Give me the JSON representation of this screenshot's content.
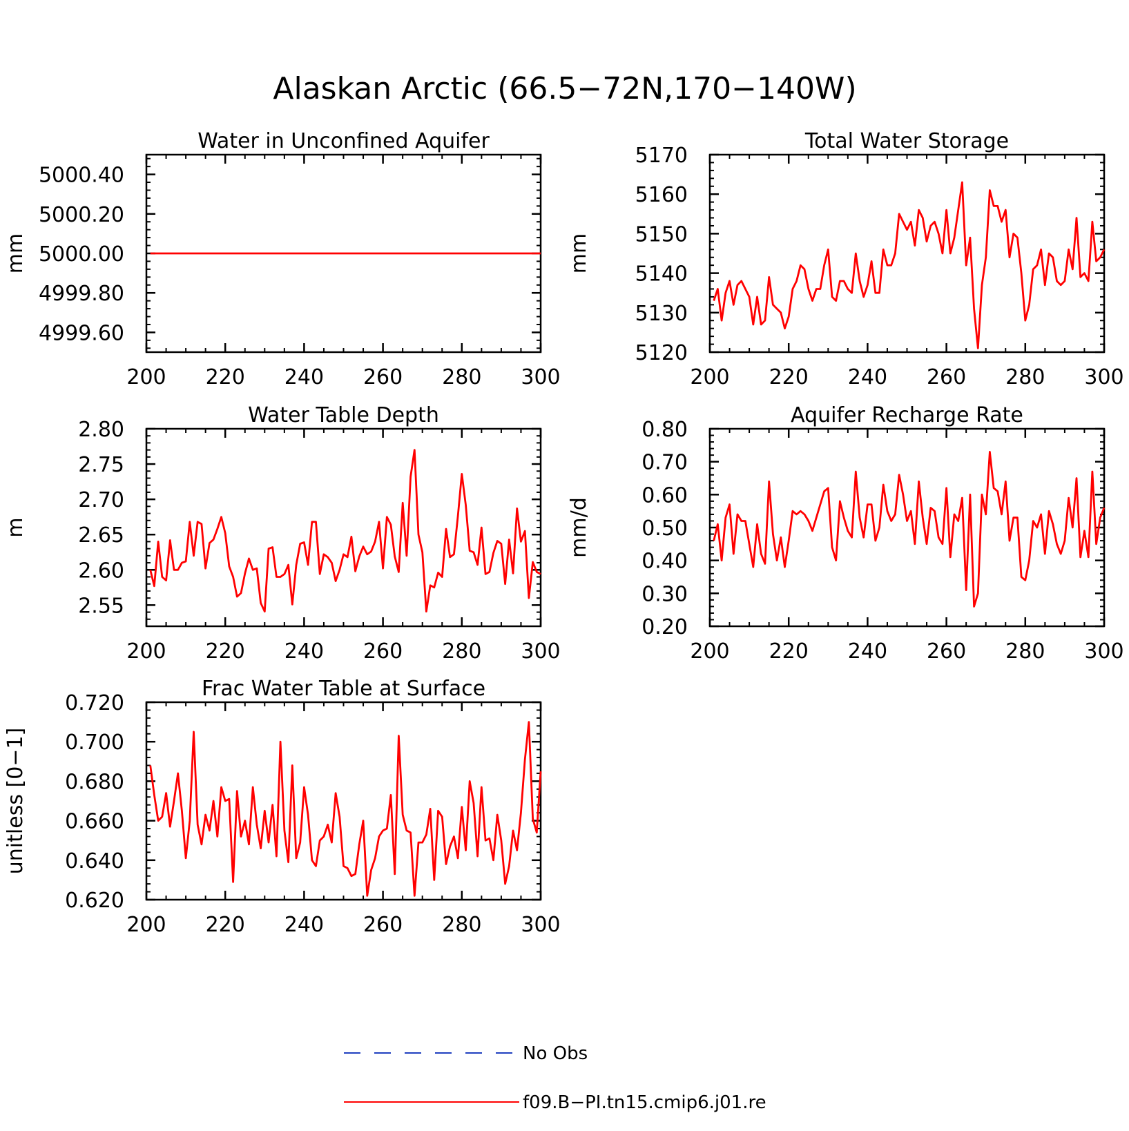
{
  "title": "Alaskan Arctic (66.5−72N,170−140W)",
  "legend": {
    "placement": "bottom-center",
    "entries": [
      {
        "label": "No Obs",
        "color": "#1f3fbf",
        "style": "dashed"
      },
      {
        "label": "f09.B−PI.tn15.cmip6.j01.re",
        "color": "#ff0000",
        "style": "solid"
      }
    ]
  },
  "chart_data": [
    {
      "type": "line",
      "title": "Water in Unconfined Aquifer",
      "xlabel": "",
      "ylabel": "mm",
      "xlim": [
        200,
        300
      ],
      "ylim": [
        4999.5,
        5000.5
      ],
      "xticks": [
        "200",
        "220",
        "240",
        "260",
        "280",
        "300"
      ],
      "yticks": [
        "4999.60",
        "4999.80",
        "5000.00",
        "5000.20",
        "5000.40"
      ],
      "color": "#ff0000",
      "x_start": 201,
      "values": [
        5000,
        5000,
        5000,
        5000,
        5000,
        5000,
        5000,
        5000,
        5000,
        5000,
        5000,
        5000,
        5000,
        5000,
        5000,
        5000,
        5000,
        5000,
        5000,
        5000,
        5000,
        5000,
        5000,
        5000,
        5000,
        5000,
        5000,
        5000,
        5000,
        5000,
        5000,
        5000,
        5000,
        5000,
        5000,
        5000,
        5000,
        5000,
        5000,
        5000,
        5000,
        5000,
        5000,
        5000,
        5000,
        5000,
        5000,
        5000,
        5000,
        5000,
        5000,
        5000,
        5000,
        5000,
        5000,
        5000,
        5000,
        5000,
        5000,
        5000,
        5000,
        5000,
        5000,
        5000,
        5000,
        5000,
        5000,
        5000,
        5000,
        5000,
        5000,
        5000,
        5000,
        5000,
        5000,
        5000,
        5000,
        5000,
        5000,
        5000,
        5000,
        5000,
        5000,
        5000,
        5000,
        5000,
        5000,
        5000,
        5000,
        5000,
        5000,
        5000,
        5000,
        5000,
        5000,
        5000,
        5000,
        5000,
        5000,
        5000
      ]
    },
    {
      "type": "line",
      "title": "Total Water Storage",
      "xlabel": "",
      "ylabel": "mm",
      "xlim": [
        200,
        300
      ],
      "ylim": [
        5120,
        5170
      ],
      "xticks": [
        "200",
        "220",
        "240",
        "260",
        "280",
        "300"
      ],
      "yticks": [
        "5120",
        "5130",
        "5140",
        "5150",
        "5160",
        "5170"
      ],
      "color": "#ff0000",
      "x_start": 201,
      "values": [
        5133,
        5136,
        5128,
        5135,
        5138,
        5132,
        5137,
        5138,
        5136,
        5134,
        5127,
        5134,
        5127,
        5128,
        5139,
        5132,
        5131,
        5130,
        5126,
        5129,
        5136,
        5138,
        5142,
        5141,
        5136,
        5133,
        5136,
        5136,
        5142,
        5146,
        5134,
        5133,
        5138,
        5138,
        5136,
        5135,
        5145,
        5138,
        5134,
        5137,
        5143,
        5135,
        5135,
        5146,
        5142,
        5142,
        5145,
        5155,
        5153,
        5151,
        5153,
        5147,
        5156,
        5154,
        5148,
        5152,
        5153,
        5150,
        5145,
        5156,
        5145,
        5149,
        5156,
        5163,
        5142,
        5149,
        5131,
        5121,
        5137,
        5144,
        5161,
        5157,
        5157,
        5153,
        5156,
        5144,
        5150,
        5149,
        5140,
        5128,
        5132,
        5141,
        5142,
        5146,
        5137,
        5145,
        5144,
        5138,
        5137,
        5138,
        5146,
        5141,
        5154,
        5139,
        5140,
        5138,
        5153,
        5143,
        5144,
        5146
      ]
    },
    {
      "type": "line",
      "title": "Water Table Depth",
      "xlabel": "",
      "ylabel": "m",
      "xlim": [
        200,
        300
      ],
      "ylim": [
        2.52,
        2.8
      ],
      "xticks": [
        "200",
        "220",
        "240",
        "260",
        "280",
        "300"
      ],
      "yticks": [
        "2.55",
        "2.60",
        "2.65",
        "2.70",
        "2.75",
        "2.80"
      ],
      "color": "#ff0000",
      "x_start": 201,
      "values": [
        2.6,
        2.577,
        2.64,
        2.59,
        2.585,
        2.642,
        2.6,
        2.6,
        2.61,
        2.612,
        2.668,
        2.62,
        2.668,
        2.665,
        2.602,
        2.638,
        2.643,
        2.658,
        2.675,
        2.652,
        2.605,
        2.59,
        2.562,
        2.567,
        2.595,
        2.616,
        2.6,
        2.602,
        2.553,
        2.541,
        2.63,
        2.632,
        2.59,
        2.59,
        2.594,
        2.607,
        2.551,
        2.607,
        2.637,
        2.639,
        2.607,
        2.668,
        2.668,
        2.594,
        2.622,
        2.618,
        2.61,
        2.584,
        2.6,
        2.622,
        2.618,
        2.647,
        2.598,
        2.619,
        2.633,
        2.622,
        2.626,
        2.64,
        2.668,
        2.602,
        2.675,
        2.664,
        2.619,
        2.597,
        2.695,
        2.62,
        2.732,
        2.77,
        2.65,
        2.625,
        2.541,
        2.578,
        2.575,
        2.596,
        2.59,
        2.658,
        2.618,
        2.622,
        2.676,
        2.736,
        2.692,
        2.627,
        2.625,
        2.607,
        2.66,
        2.594,
        2.597,
        2.624,
        2.641,
        2.637,
        2.58,
        2.643,
        2.595,
        2.687,
        2.64,
        2.655,
        2.56,
        2.611,
        2.597,
        2.594
      ]
    },
    {
      "type": "line",
      "title": "Aquifer Recharge Rate",
      "xlabel": "",
      "ylabel": "mm/d",
      "xlim": [
        200,
        300
      ],
      "ylim": [
        0.2,
        0.8
      ],
      "xticks": [
        "200",
        "220",
        "240",
        "260",
        "280",
        "300"
      ],
      "yticks": [
        "0.20",
        "0.30",
        "0.40",
        "0.50",
        "0.60",
        "0.70",
        "0.80"
      ],
      "color": "#ff0000",
      "x_start": 201,
      "values": [
        0.46,
        0.51,
        0.4,
        0.53,
        0.57,
        0.42,
        0.54,
        0.52,
        0.52,
        0.45,
        0.38,
        0.51,
        0.42,
        0.39,
        0.64,
        0.48,
        0.4,
        0.47,
        0.38,
        0.46,
        0.55,
        0.54,
        0.55,
        0.54,
        0.52,
        0.49,
        0.53,
        0.57,
        0.61,
        0.62,
        0.44,
        0.4,
        0.58,
        0.53,
        0.49,
        0.47,
        0.67,
        0.53,
        0.47,
        0.57,
        0.57,
        0.46,
        0.5,
        0.63,
        0.55,
        0.52,
        0.54,
        0.66,
        0.6,
        0.52,
        0.55,
        0.45,
        0.64,
        0.53,
        0.45,
        0.56,
        0.55,
        0.47,
        0.45,
        0.62,
        0.41,
        0.54,
        0.52,
        0.59,
        0.31,
        0.6,
        0.26,
        0.3,
        0.6,
        0.54,
        0.73,
        0.62,
        0.61,
        0.54,
        0.64,
        0.46,
        0.53,
        0.53,
        0.35,
        0.34,
        0.4,
        0.52,
        0.5,
        0.54,
        0.42,
        0.55,
        0.51,
        0.45,
        0.42,
        0.46,
        0.59,
        0.5,
        0.65,
        0.41,
        0.49,
        0.41,
        0.67,
        0.45,
        0.53,
        0.56
      ]
    },
    {
      "type": "line",
      "title": "Frac Water Table at Surface",
      "xlabel": "",
      "ylabel": "unitless [0−1]",
      "xlim": [
        200,
        300
      ],
      "ylim": [
        0.62,
        0.72
      ],
      "xticks": [
        "200",
        "220",
        "240",
        "260",
        "280",
        "300"
      ],
      "yticks": [
        "0.620",
        "0.640",
        "0.660",
        "0.680",
        "0.700",
        "0.720"
      ],
      "color": "#ff0000",
      "x_start": 201,
      "values": [
        0.688,
        0.673,
        0.66,
        0.662,
        0.674,
        0.657,
        0.67,
        0.684,
        0.665,
        0.641,
        0.66,
        0.705,
        0.658,
        0.648,
        0.663,
        0.655,
        0.67,
        0.652,
        0.677,
        0.67,
        0.671,
        0.629,
        0.675,
        0.652,
        0.66,
        0.648,
        0.677,
        0.658,
        0.646,
        0.665,
        0.649,
        0.668,
        0.642,
        0.7,
        0.655,
        0.639,
        0.688,
        0.641,
        0.649,
        0.677,
        0.663,
        0.64,
        0.637,
        0.65,
        0.652,
        0.658,
        0.649,
        0.674,
        0.662,
        0.637,
        0.636,
        0.632,
        0.633,
        0.648,
        0.66,
        0.622,
        0.635,
        0.641,
        0.652,
        0.655,
        0.656,
        0.673,
        0.633,
        0.703,
        0.663,
        0.655,
        0.654,
        0.622,
        0.649,
        0.649,
        0.653,
        0.666,
        0.63,
        0.665,
        0.662,
        0.638,
        0.647,
        0.652,
        0.641,
        0.667,
        0.645,
        0.68,
        0.669,
        0.642,
        0.677,
        0.65,
        0.651,
        0.64,
        0.663,
        0.65,
        0.628,
        0.637,
        0.655,
        0.645,
        0.664,
        0.691,
        0.71,
        0.661,
        0.654,
        0.685
      ]
    }
  ]
}
